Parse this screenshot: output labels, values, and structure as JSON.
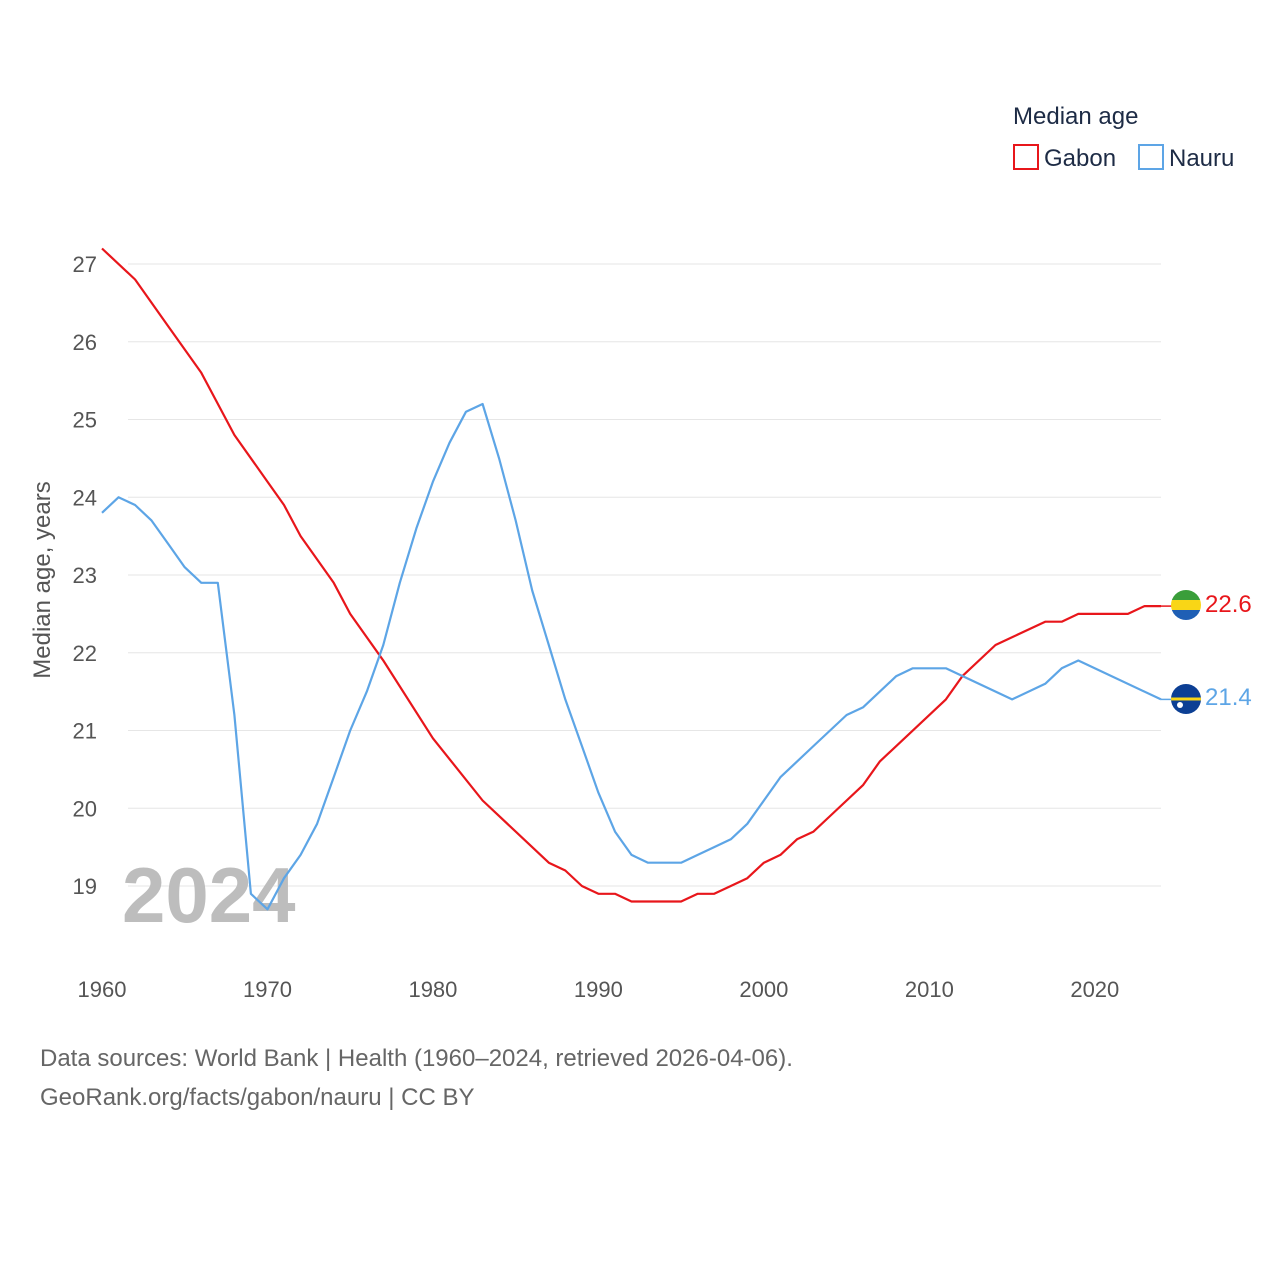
{
  "chart_data": {
    "type": "line",
    "legend_title": "Median age",
    "ylabel": "Median age, years",
    "year_label": "2024",
    "x_ticks": [
      1960,
      1970,
      1980,
      1990,
      2000,
      2010,
      2020
    ],
    "y_ticks": [
      19,
      20,
      21,
      22,
      23,
      24,
      25,
      26,
      27
    ],
    "xlim": [
      1960,
      2024
    ],
    "ylim": [
      18.4,
      27.2
    ],
    "series": [
      {
        "name": "Gabon",
        "color": "#e8161b",
        "end_label": "22.6",
        "flag": "gabon-flag",
        "x": [
          1960,
          1962,
          1964,
          1966,
          1968,
          1970,
          1971,
          1972,
          1974,
          1975,
          1977,
          1980,
          1983,
          1987,
          1988,
          1989,
          1990,
          1991,
          1992,
          1995,
          1996,
          1997,
          1999,
          2000,
          2001,
          2002,
          2003,
          2004,
          2006,
          2007,
          2011,
          2012,
          2014,
          2017,
          2018,
          2019,
          2022,
          2023,
          2024
        ],
        "values": [
          27.2,
          26.8,
          26.2,
          25.6,
          24.8,
          24.2,
          23.9,
          23.5,
          22.9,
          22.5,
          21.9,
          20.9,
          20.1,
          19.3,
          19.2,
          19.0,
          18.9,
          18.9,
          18.8,
          18.8,
          18.9,
          18.9,
          19.1,
          19.3,
          19.4,
          19.6,
          19.7,
          19.9,
          20.3,
          20.6,
          21.4,
          21.7,
          22.1,
          22.4,
          22.4,
          22.5,
          22.5,
          22.6,
          22.6
        ]
      },
      {
        "name": "Nauru",
        "color": "#5da5e6",
        "end_label": "21.4",
        "flag": "nauru-flag",
        "x": [
          1960,
          1961,
          1962,
          1963,
          1964,
          1965,
          1966,
          1967,
          1968,
          1969,
          1970,
          1971,
          1972,
          1973,
          1974,
          1975,
          1976,
          1977,
          1978,
          1979,
          1980,
          1981,
          1982,
          1983,
          1984,
          1985,
          1986,
          1987,
          1988,
          1989,
          1990,
          1991,
          1992,
          1993,
          1994,
          1995,
          1996,
          1997,
          1998,
          1999,
          2000,
          2001,
          2003,
          2005,
          2006,
          2008,
          2009,
          2011,
          2015,
          2017,
          2018,
          2019,
          2024
        ],
        "values": [
          23.8,
          24.0,
          23.9,
          23.7,
          23.4,
          23.1,
          22.9,
          22.9,
          21.2,
          18.9,
          18.7,
          19.1,
          19.4,
          19.8,
          20.4,
          21.0,
          21.5,
          22.1,
          22.9,
          23.6,
          24.2,
          24.7,
          25.1,
          25.2,
          24.5,
          23.7,
          22.8,
          22.1,
          21.4,
          20.8,
          20.2,
          19.7,
          19.4,
          19.3,
          19.3,
          19.3,
          19.4,
          19.5,
          19.6,
          19.8,
          20.1,
          20.4,
          20.8,
          21.2,
          21.3,
          21.7,
          21.8,
          21.8,
          21.4,
          21.6,
          21.8,
          21.9,
          21.4
        ]
      }
    ]
  },
  "sources": {
    "line1": "Data sources: World Bank | Health (1960–2024, retrieved 2026-04-06).",
    "line2": "GeoRank.org/facts/gabon/nauru | CC BY"
  }
}
